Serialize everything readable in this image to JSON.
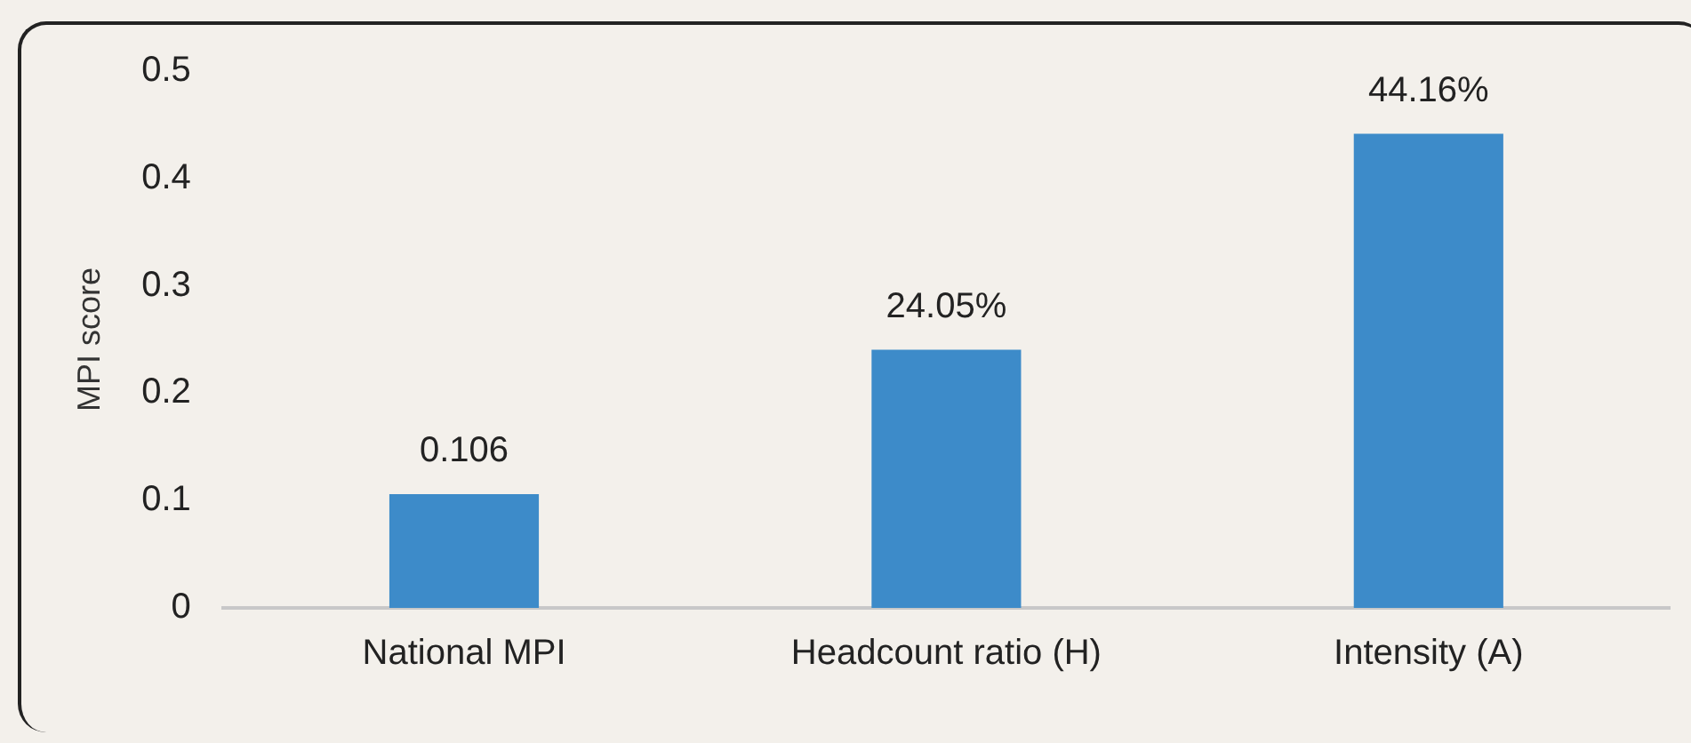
{
  "chart_data": {
    "type": "bar",
    "ylabel": "MPI score",
    "categories": [
      "National MPI",
      "Headcount ratio (H)",
      "Intensity (A)"
    ],
    "values": [
      0.106,
      0.2405,
      0.4416
    ],
    "value_labels": [
      "0.106",
      "24.05%",
      "44.16%"
    ],
    "color": "#3d8bc9",
    "ylim": [
      0,
      0.5
    ],
    "yticks": [
      0,
      0.1,
      0.2,
      0.3,
      0.4,
      0.5
    ],
    "grid": false,
    "legend": false
  }
}
